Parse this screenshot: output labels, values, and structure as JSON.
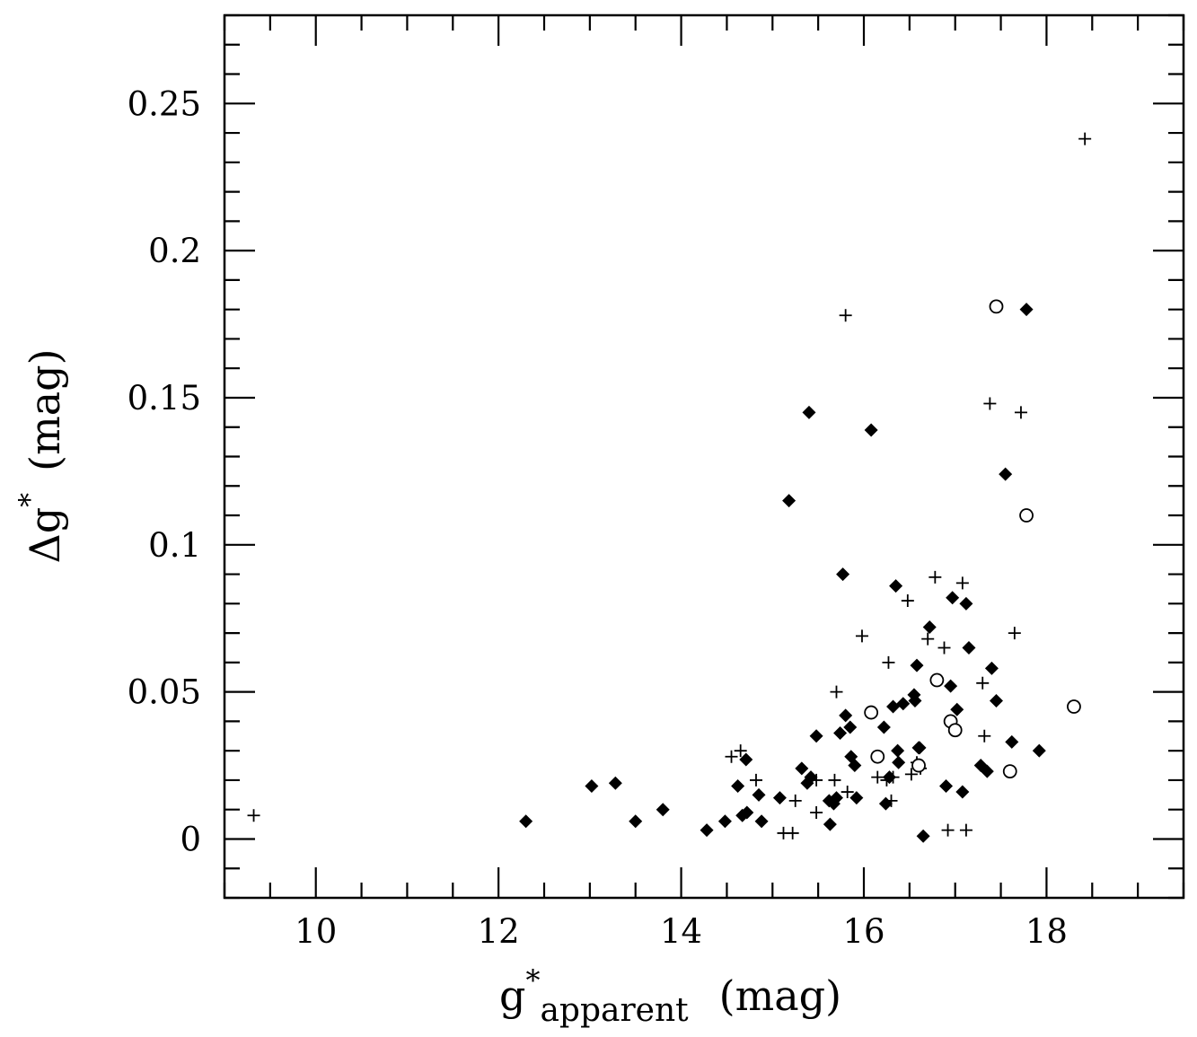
{
  "chart_data": {
    "type": "scatter",
    "xlabel": {
      "main": "g",
      "sup": "*",
      "sub": "apparent",
      "unit": "(mag)"
    },
    "ylabel": {
      "main": "Δg",
      "sup": "*",
      "unit": "(mag)"
    },
    "xlim": [
      9.0,
      19.5
    ],
    "ylim": [
      -0.02,
      0.28
    ],
    "x_ticks": [
      10,
      12,
      14,
      16,
      18
    ],
    "x_tick_labels": [
      "10",
      "12",
      "14",
      "16",
      "18"
    ],
    "x_minor_step": 0.5,
    "y_ticks": [
      0,
      0.05,
      0.1,
      0.15,
      0.2,
      0.25
    ],
    "y_tick_labels": [
      "0",
      "0.05",
      "0.1",
      "0.15",
      "0.2",
      "0.25"
    ],
    "y_minor_step": 0.01,
    "grid": false,
    "legend": null,
    "series": [
      {
        "marker": "filled-diamond",
        "color": "#000000",
        "points": [
          [
            12.3,
            0.006
          ],
          [
            13.02,
            0.018
          ],
          [
            13.28,
            0.019
          ],
          [
            13.5,
            0.006
          ],
          [
            13.8,
            0.01
          ],
          [
            14.28,
            0.003
          ],
          [
            14.48,
            0.006
          ],
          [
            14.62,
            0.018
          ],
          [
            14.67,
            0.008
          ],
          [
            14.72,
            0.009
          ],
          [
            14.71,
            0.027
          ],
          [
            14.85,
            0.015
          ],
          [
            14.88,
            0.006
          ],
          [
            15.08,
            0.014
          ],
          [
            15.18,
            0.115
          ],
          [
            15.32,
            0.024
          ],
          [
            15.38,
            0.019
          ],
          [
            15.4,
            0.145
          ],
          [
            15.42,
            0.021
          ],
          [
            15.48,
            0.035
          ],
          [
            15.62,
            0.013
          ],
          [
            15.63,
            0.005
          ],
          [
            15.67,
            0.012
          ],
          [
            15.7,
            0.014
          ],
          [
            15.74,
            0.036
          ],
          [
            15.77,
            0.09
          ],
          [
            15.8,
            0.042
          ],
          [
            15.85,
            0.038
          ],
          [
            15.86,
            0.028
          ],
          [
            15.9,
            0.025
          ],
          [
            15.92,
            0.014
          ],
          [
            16.08,
            0.139
          ],
          [
            16.22,
            0.038
          ],
          [
            16.24,
            0.012
          ],
          [
            16.28,
            0.021
          ],
          [
            16.32,
            0.045
          ],
          [
            16.35,
            0.086
          ],
          [
            16.37,
            0.03
          ],
          [
            16.38,
            0.026
          ],
          [
            16.43,
            0.046
          ],
          [
            16.55,
            0.049
          ],
          [
            16.56,
            0.047
          ],
          [
            16.58,
            0.059
          ],
          [
            16.6,
            0.031
          ],
          [
            16.61,
            0.031
          ],
          [
            16.65,
            0.001
          ],
          [
            16.72,
            0.072
          ],
          [
            16.9,
            0.018
          ],
          [
            16.95,
            0.052
          ],
          [
            16.97,
            0.082
          ],
          [
            17.02,
            0.044
          ],
          [
            17.08,
            0.016
          ],
          [
            17.12,
            0.08
          ],
          [
            17.15,
            0.065
          ],
          [
            17.28,
            0.025
          ],
          [
            17.35,
            0.023
          ],
          [
            17.4,
            0.058
          ],
          [
            17.45,
            0.047
          ],
          [
            17.55,
            0.124
          ],
          [
            17.62,
            0.033
          ],
          [
            17.78,
            0.18
          ],
          [
            17.92,
            0.03
          ]
        ]
      },
      {
        "marker": "plus",
        "color": "#000000",
        "points": [
          [
            9.32,
            0.008
          ],
          [
            14.55,
            0.028
          ],
          [
            14.65,
            0.03
          ],
          [
            14.82,
            0.02
          ],
          [
            15.12,
            0.002
          ],
          [
            15.22,
            0.002
          ],
          [
            15.25,
            0.013
          ],
          [
            15.48,
            0.009
          ],
          [
            15.48,
            0.02
          ],
          [
            15.68,
            0.02
          ],
          [
            15.7,
            0.05
          ],
          [
            15.8,
            0.178
          ],
          [
            15.82,
            0.016
          ],
          [
            15.98,
            0.069
          ],
          [
            16.15,
            0.021
          ],
          [
            16.25,
            0.02
          ],
          [
            16.27,
            0.06
          ],
          [
            16.3,
            0.013
          ],
          [
            16.32,
            0.021
          ],
          [
            16.48,
            0.081
          ],
          [
            16.52,
            0.022
          ],
          [
            16.58,
            0.026
          ],
          [
            16.62,
            0.024
          ],
          [
            16.7,
            0.068
          ],
          [
            16.78,
            0.089
          ],
          [
            16.88,
            0.065
          ],
          [
            16.92,
            0.003
          ],
          [
            17.08,
            0.087
          ],
          [
            17.12,
            0.003
          ],
          [
            17.3,
            0.053
          ],
          [
            17.32,
            0.035
          ],
          [
            17.38,
            0.148
          ],
          [
            17.65,
            0.07
          ],
          [
            17.72,
            0.145
          ],
          [
            18.42,
            0.238
          ]
        ]
      },
      {
        "marker": "open-circle",
        "color": "#000000",
        "points": [
          [
            16.08,
            0.043
          ],
          [
            16.15,
            0.028
          ],
          [
            16.6,
            0.025
          ],
          [
            16.8,
            0.054
          ],
          [
            16.95,
            0.04
          ],
          [
            17.0,
            0.037
          ],
          [
            17.45,
            0.181
          ],
          [
            17.6,
            0.023
          ],
          [
            17.78,
            0.11
          ],
          [
            18.3,
            0.045
          ]
        ]
      }
    ]
  }
}
